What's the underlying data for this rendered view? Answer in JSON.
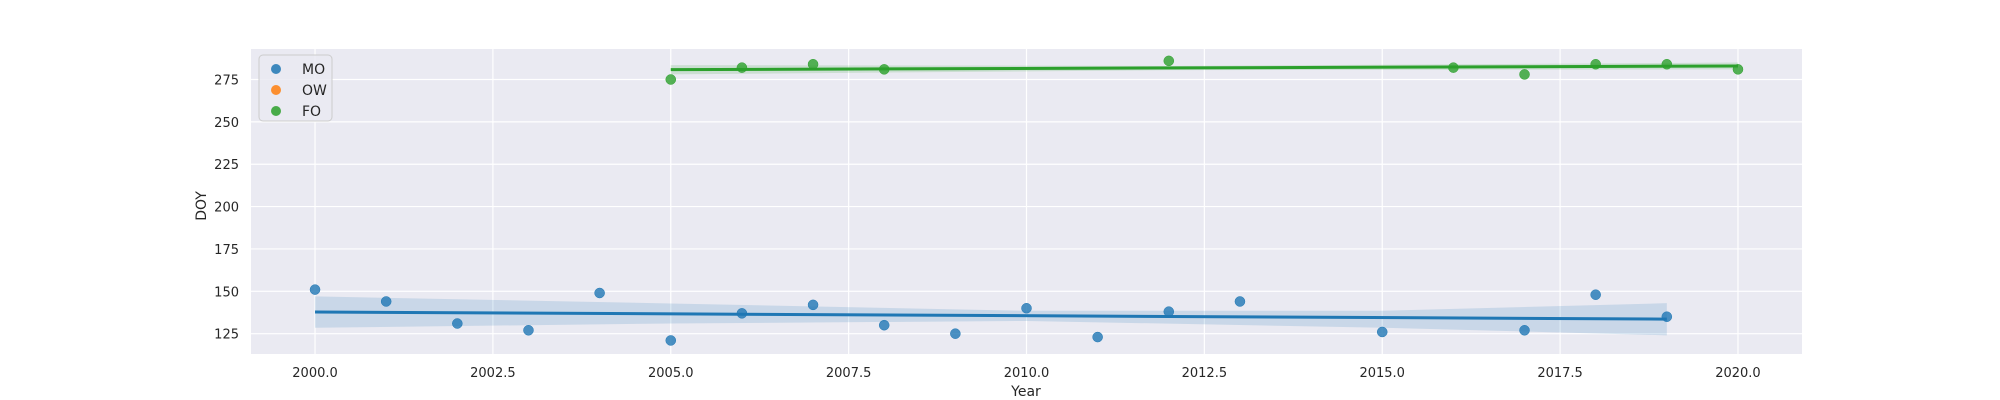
{
  "chart_data": {
    "type": "scatter",
    "style": "seaborn-darkgrid",
    "xlabel": "Year",
    "ylabel": "DOY",
    "xlim": [
      1999.1,
      2020.9
    ],
    "ylim": [
      113,
      293
    ],
    "xticks": [
      2000.0,
      2002.5,
      2005.0,
      2007.5,
      2010.0,
      2012.5,
      2015.0,
      2017.5,
      2020.0
    ],
    "xtick_labels": [
      "2000.0",
      "2002.5",
      "2005.0",
      "2007.5",
      "2010.0",
      "2012.5",
      "2015.0",
      "2017.5",
      "2020.0"
    ],
    "yticks": [
      125,
      150,
      175,
      200,
      225,
      250,
      275
    ],
    "ytick_labels": [
      "125",
      "150",
      "175",
      "200",
      "225",
      "250",
      "275"
    ],
    "grid": true,
    "legend_position": "top-left",
    "series": [
      {
        "name": "MO",
        "color": "#1f77b4",
        "points": [
          [
            2000,
            151
          ],
          [
            2001,
            144
          ],
          [
            2002,
            131
          ],
          [
            2003,
            127
          ],
          [
            2004,
            149
          ],
          [
            2005,
            121
          ],
          [
            2006,
            137
          ],
          [
            2007,
            142
          ],
          [
            2008,
            130
          ],
          [
            2009,
            125
          ],
          [
            2010,
            140
          ],
          [
            2011,
            123
          ],
          [
            2012,
            138
          ],
          [
            2013,
            144
          ],
          [
            2015,
            126
          ],
          [
            2017,
            127
          ],
          [
            2018,
            148
          ],
          [
            2019,
            135
          ]
        ],
        "regression": {
          "x": [
            2000,
            2019
          ],
          "y": [
            137.8,
            133.6
          ]
        },
        "ci_band": {
          "x": [
            2000,
            2005,
            2010,
            2015,
            2019
          ],
          "lower": [
            128.5,
            131,
            132.5,
            128.5,
            124.0
          ],
          "upper": [
            147,
            142.8,
            138.5,
            138.5,
            143.0
          ]
        }
      },
      {
        "name": "OW",
        "color": "#ff7f0e",
        "points": []
      },
      {
        "name": "FO",
        "color": "#2ca02c",
        "points": [
          [
            2005,
            275
          ],
          [
            2006,
            282
          ],
          [
            2007,
            284
          ],
          [
            2008,
            281
          ],
          [
            2012,
            286
          ],
          [
            2016,
            282
          ],
          [
            2017,
            278
          ],
          [
            2018,
            284
          ],
          [
            2019,
            284
          ],
          [
            2020,
            281
          ]
        ],
        "regression": {
          "x": [
            2005,
            2020
          ],
          "y": [
            280.8,
            283.0
          ]
        },
        "ci_band": {
          "x": [
            2005,
            2012,
            2020
          ],
          "lower": [
            278.0,
            280.5,
            281.0
          ],
          "upper": [
            283.5,
            283.0,
            285.0
          ]
        }
      }
    ]
  }
}
